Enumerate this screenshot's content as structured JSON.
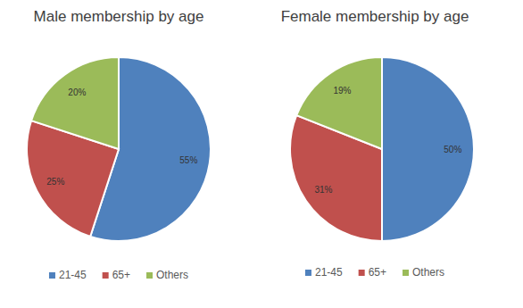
{
  "chart_data": [
    {
      "type": "pie",
      "title": "Male membership by age",
      "categories": [
        "21-45",
        "65+",
        "Others"
      ],
      "values": [
        55,
        25,
        20
      ],
      "value_labels": [
        "55%",
        "25%",
        "20%"
      ],
      "colors": [
        "#4f81bd",
        "#c0504d",
        "#9bbb59"
      ],
      "data_labels": true,
      "legend": "bottom"
    },
    {
      "type": "pie",
      "title": "Female membership by age",
      "categories": [
        "21-45",
        "65+",
        "Others"
      ],
      "values": [
        50,
        31,
        19
      ],
      "value_labels": [
        "50%",
        "31%",
        "19%"
      ],
      "colors": [
        "#4f81bd",
        "#c0504d",
        "#9bbb59"
      ],
      "data_labels": true,
      "legend": "bottom"
    }
  ]
}
